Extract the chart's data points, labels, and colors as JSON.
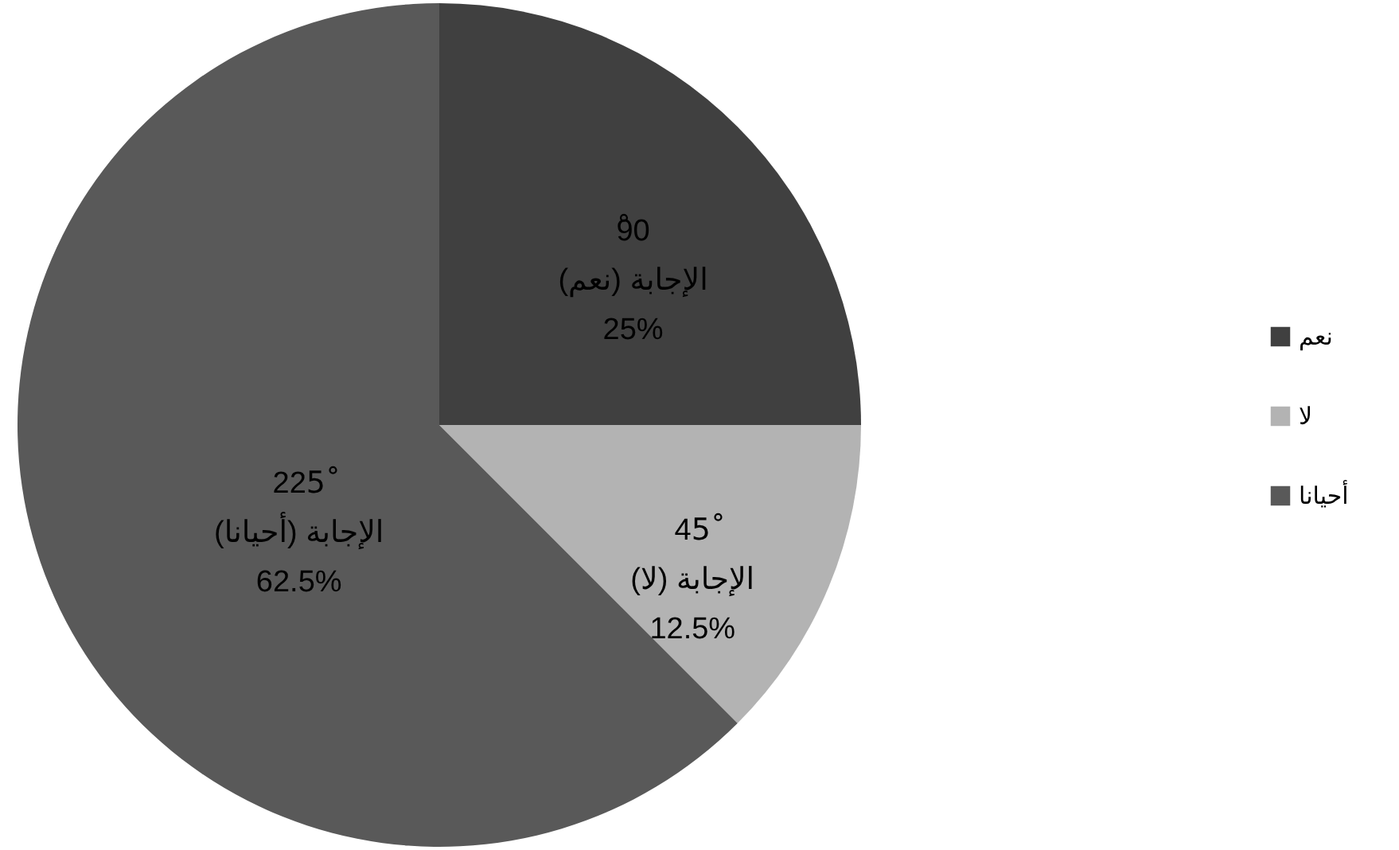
{
  "chart_data": {
    "type": "pie",
    "categories": [
      "نعم",
      "لا",
      "أحيانا"
    ],
    "values": [
      90,
      45,
      225
    ],
    "colors": [
      "#404040",
      "#b3b3b3",
      "#595959"
    ],
    "value_labels": [
      "ْ90\nالإجابة (نعم)\n25%",
      "45ْ\nالإجابة (لا)\n12.5%",
      "225ْ\nالإجابة (أحيانا)\n62.5%"
    ],
    "legend": "right"
  }
}
